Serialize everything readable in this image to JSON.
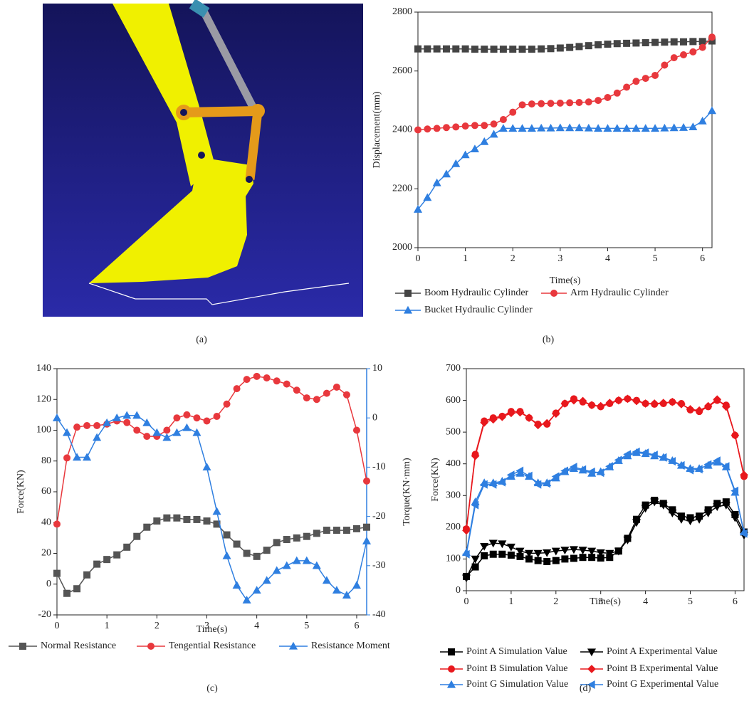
{
  "image_caption": "(a)",
  "chart_data": [
    {
      "type": "line",
      "caption": "(b)",
      "xlabel": "Time(s)",
      "ylabel": "Displacement(mm)",
      "x": [
        0,
        0.2,
        0.4,
        0.6,
        0.8,
        1.0,
        1.2,
        1.4,
        1.6,
        1.8,
        2.0,
        2.2,
        2.4,
        2.6,
        2.8,
        3.0,
        3.2,
        3.4,
        3.6,
        3.8,
        4.0,
        4.2,
        4.4,
        4.6,
        4.8,
        5.0,
        5.2,
        5.4,
        5.6,
        5.8,
        6.0,
        6.2
      ],
      "xlim": [
        0,
        6.2
      ],
      "xticks": [
        0,
        1,
        2,
        3,
        4,
        5,
        6
      ],
      "ylim": [
        2000,
        2800
      ],
      "yticks": [
        2000,
        2200,
        2400,
        2600,
        2800
      ],
      "series": [
        {
          "name": "Boom Hydraulic Cylinder",
          "color": "#444444",
          "marker": "square",
          "values": [
            2675,
            2675,
            2675,
            2675,
            2675,
            2675,
            2674,
            2674,
            2674,
            2674,
            2674,
            2674,
            2674,
            2675,
            2676,
            2678,
            2680,
            2683,
            2686,
            2689,
            2691,
            2693,
            2694,
            2695,
            2696,
            2697,
            2698,
            2699,
            2699,
            2700,
            2700,
            2702
          ]
        },
        {
          "name": "Arm Hydraulic Cylinder",
          "color": "#e8383d",
          "marker": "circle",
          "values": [
            2400,
            2403,
            2405,
            2408,
            2410,
            2413,
            2415,
            2415,
            2420,
            2435,
            2460,
            2485,
            2488,
            2489,
            2490,
            2491,
            2492,
            2493,
            2495,
            2500,
            2510,
            2525,
            2545,
            2565,
            2575,
            2585,
            2620,
            2645,
            2655,
            2665,
            2680,
            2715
          ]
        },
        {
          "name": "Bucket Hydraulic Cylinder",
          "color": "#2f7fe0",
          "marker": "triangle",
          "values": [
            2130,
            2170,
            2220,
            2250,
            2285,
            2315,
            2335,
            2360,
            2385,
            2405,
            2405,
            2405,
            2405,
            2406,
            2406,
            2407,
            2407,
            2407,
            2406,
            2405,
            2405,
            2405,
            2405,
            2405,
            2405,
            2405,
            2406,
            2407,
            2408,
            2410,
            2430,
            2465
          ]
        }
      ]
    },
    {
      "type": "line",
      "caption": "(c)",
      "xlabel": "Time(s)",
      "ylabel": "Force(KN)",
      "y2label": "Torque(KN·mm)",
      "y2color": "#2f7fe0",
      "x": [
        0,
        0.2,
        0.4,
        0.6,
        0.8,
        1.0,
        1.2,
        1.4,
        1.6,
        1.8,
        2.0,
        2.2,
        2.4,
        2.6,
        2.8,
        3.0,
        3.2,
        3.4,
        3.6,
        3.8,
        4.0,
        4.2,
        4.4,
        4.6,
        4.8,
        5.0,
        5.2,
        5.4,
        5.6,
        5.8,
        6.0,
        6.2
      ],
      "xlim": [
        0,
        6.2
      ],
      "xticks": [
        0,
        1,
        2,
        3,
        4,
        5,
        6
      ],
      "ylim": [
        -20,
        140
      ],
      "yticks": [
        -20,
        0,
        20,
        40,
        60,
        80,
        100,
        120,
        140
      ],
      "y2lim": [
        -40,
        10
      ],
      "y2ticks": [
        -40,
        -30,
        -20,
        -10,
        0,
        10
      ],
      "series": [
        {
          "name": "Normal Resistance",
          "color": "#555555",
          "marker": "square",
          "values": [
            7,
            -6,
            -3,
            6,
            13,
            16,
            19,
            24,
            31,
            37,
            41,
            43,
            43,
            42,
            42,
            41,
            39,
            32,
            26,
            20,
            18,
            22,
            27,
            29,
            30,
            31,
            33,
            35,
            35,
            35,
            36,
            37
          ]
        },
        {
          "name": "Tengential Resistance",
          "color": "#e8383d",
          "marker": "circle",
          "values": [
            39,
            82,
            102,
            103,
            103,
            104,
            106,
            105,
            100,
            96,
            96,
            100,
            108,
            110,
            108,
            106,
            109,
            117,
            127,
            133,
            135,
            134,
            132,
            130,
            126,
            121,
            120,
            124,
            128,
            123,
            100,
            67
          ]
        },
        {
          "name": "Resistance Moment",
          "color": "#2f7fe0",
          "marker": "triangle",
          "axis": "y2",
          "values": [
            0,
            -3,
            -8,
            -8,
            -4,
            -1,
            0,
            0.5,
            0.5,
            -1,
            -3,
            -4,
            -3,
            -2,
            -3,
            -10,
            -19,
            -28,
            -34,
            -37,
            -35,
            -33,
            -31,
            -30,
            -29,
            -29,
            -30,
            -33,
            -35,
            -36,
            -34,
            -25
          ]
        }
      ]
    },
    {
      "type": "line",
      "caption": "(d)",
      "xlabel": "Time(s)",
      "ylabel": "Force(KN)",
      "x": [
        0,
        0.2,
        0.4,
        0.6,
        0.8,
        1.0,
        1.2,
        1.4,
        1.6,
        1.8,
        2.0,
        2.2,
        2.4,
        2.6,
        2.8,
        3.0,
        3.2,
        3.4,
        3.6,
        3.8,
        4.0,
        4.2,
        4.4,
        4.6,
        4.8,
        5.0,
        5.2,
        5.4,
        5.6,
        5.8,
        6.0,
        6.2
      ],
      "xlim": [
        0,
        6.2
      ],
      "xticks": [
        0,
        1,
        2,
        3,
        4,
        5,
        6
      ],
      "ylim": [
        0,
        700
      ],
      "yticks": [
        0,
        100,
        200,
        300,
        400,
        500,
        600,
        700
      ],
      "series": [
        {
          "name": "Point A Simulation Value",
          "color": "#000000",
          "marker": "square",
          "values": [
            45,
            75,
            110,
            115,
            115,
            112,
            108,
            100,
            95,
            92,
            95,
            100,
            102,
            105,
            105,
            103,
            105,
            125,
            165,
            225,
            270,
            285,
            275,
            255,
            235,
            230,
            235,
            255,
            275,
            280,
            240,
            185
          ]
        },
        {
          "name": "Point A Experimental Value",
          "color": "#000000",
          "marker": "triangle-down",
          "values": [
            40,
            100,
            140,
            150,
            148,
            138,
            125,
            118,
            118,
            120,
            125,
            128,
            130,
            128,
            125,
            120,
            118,
            125,
            160,
            215,
            260,
            280,
            270,
            245,
            225,
            220,
            225,
            245,
            265,
            270,
            230,
            175
          ]
        },
        {
          "name": "Point B Simulation Value",
          "color": "#e8181d",
          "marker": "circle",
          "values": [
            195,
            430,
            535,
            545,
            550,
            565,
            565,
            545,
            525,
            525,
            560,
            590,
            605,
            595,
            585,
            580,
            590,
            600,
            605,
            600,
            590,
            588,
            590,
            595,
            590,
            570,
            565,
            580,
            600,
            585,
            490,
            360
          ]
        },
        {
          "name": "Point B Experimental Value",
          "color": "#e8181d",
          "marker": "diamond",
          "values": [
            190,
            425,
            530,
            540,
            548,
            560,
            562,
            545,
            522,
            528,
            558,
            590,
            600,
            598,
            585,
            582,
            592,
            600,
            605,
            598,
            590,
            590,
            592,
            595,
            588,
            572,
            568,
            582,
            603,
            580,
            490,
            365
          ]
        },
        {
          "name": "Point G Simulation Value",
          "color": "#2f7fe0",
          "marker": "triangle",
          "values": [
            120,
            280,
            340,
            340,
            345,
            360,
            370,
            360,
            340,
            340,
            355,
            375,
            385,
            380,
            370,
            375,
            390,
            410,
            425,
            435,
            432,
            425,
            420,
            410,
            395,
            385,
            385,
            395,
            405,
            390,
            310,
            185
          ]
        },
        {
          "name": "Point G Experimental Value",
          "color": "#2f7fe0",
          "marker": "triangle-left",
          "values": [
            115,
            270,
            335,
            335,
            342,
            365,
            378,
            362,
            335,
            338,
            360,
            378,
            390,
            382,
            375,
            372,
            392,
            412,
            430,
            438,
            435,
            428,
            420,
            408,
            395,
            380,
            383,
            398,
            410,
            392,
            315,
            180
          ]
        }
      ]
    }
  ]
}
